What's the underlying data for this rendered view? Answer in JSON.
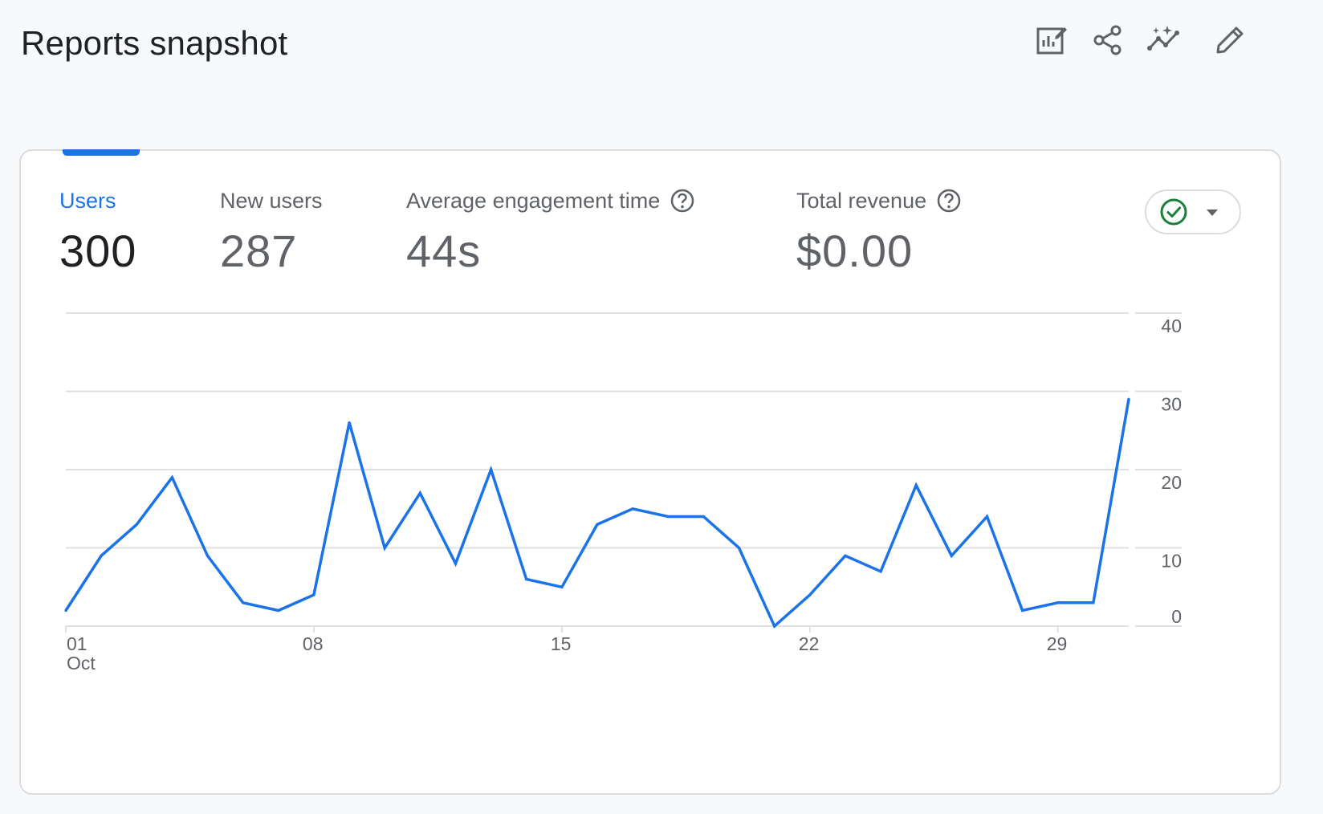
{
  "header": {
    "title": "Reports snapshot",
    "toolbar": [
      {
        "name": "customize-report-icon"
      },
      {
        "name": "share-icon"
      },
      {
        "name": "insights-icon"
      },
      {
        "name": "edit-icon"
      }
    ]
  },
  "card": {
    "metrics": [
      {
        "label": "Users",
        "value": "300",
        "active": true
      },
      {
        "label": "New users",
        "value": "287"
      },
      {
        "label": "Average engagement time",
        "value": "44s",
        "help": true
      },
      {
        "label": "Total revenue",
        "value": "$0.00",
        "help": true
      }
    ],
    "status_icon": "check-circle-icon",
    "status_color": "#188038"
  },
  "colors": {
    "accent": "#1a73e8",
    "line": "#1a73e8",
    "grid": "#e0e0e0",
    "muted_text": "#5f6368"
  },
  "chart_data": {
    "type": "line",
    "x": [
      1,
      2,
      3,
      4,
      5,
      6,
      7,
      8,
      9,
      10,
      11,
      12,
      13,
      14,
      15,
      16,
      17,
      18,
      19,
      20,
      21,
      22,
      23,
      24,
      25,
      26,
      27,
      28,
      29,
      30,
      31
    ],
    "series": [
      {
        "values": [
          2,
          9,
          13,
          19,
          9,
          3,
          2,
          4,
          26,
          10,
          17,
          8,
          20,
          6,
          5,
          13,
          15,
          14,
          14,
          10,
          0,
          4,
          9,
          7,
          18,
          9,
          14,
          2,
          3,
          3,
          29
        ]
      }
    ],
    "x_tick_labels": [
      "01",
      "08",
      "15",
      "22",
      "29"
    ],
    "x_tick_values": [
      1,
      8,
      15,
      22,
      29
    ],
    "x_sub_label": "Oct",
    "y_tick_labels": [
      "0",
      "10",
      "20",
      "30",
      "40"
    ],
    "y_tick_values": [
      0,
      10,
      20,
      30,
      40
    ],
    "ylim": [
      0,
      40
    ],
    "grid": true,
    "y_axis_position": "right"
  }
}
